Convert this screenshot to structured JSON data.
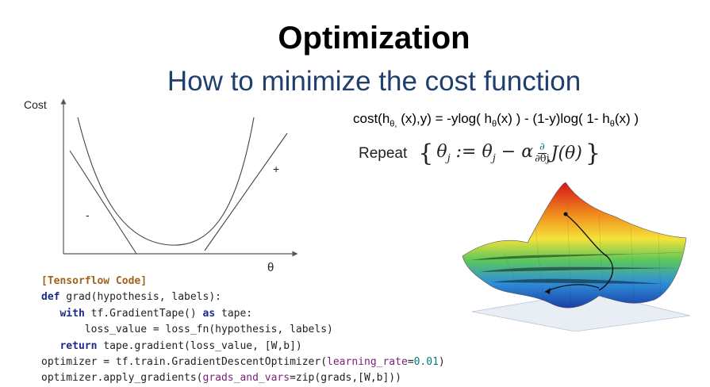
{
  "slide": {
    "title": "Optimization",
    "subtitle": "How to minimize the cost function"
  },
  "graph": {
    "y_label": "Cost",
    "x_label": "θ",
    "minus_mark": "-",
    "plus_mark": "+"
  },
  "formula": {
    "cost_prefix": "cost(h",
    "sub1": "θ,",
    "part2": " (x),y) = -ylog( h",
    "sub2": "θ",
    "part3": "(x) ) - (1-y)log( 1- h",
    "sub3": "θ",
    "part4": "(x) )"
  },
  "update_rule": {
    "word": "Repeat",
    "open_brace": "{",
    "theta": "θ",
    "j": "j",
    "assign": " := ",
    "minus": " − α",
    "d_num": "∂",
    "d_den": "∂θj",
    "J": "J(θ)",
    "close_brace": "}"
  },
  "code": {
    "l1": "[Tensorflow Code]",
    "l2_kw": "def",
    "l2_rest": " grad(hypothesis, labels):",
    "l3_indent": "   ",
    "l3_kw": "with",
    "l3_mid": " tf.GradientTape() ",
    "l3_kw2": "as",
    "l3_rest": " tape:",
    "l4": "       loss_value = loss_fn(hypothesis, labels)",
    "l5_indent": "   ",
    "l5_kw": "return",
    "l5_rest": " tape.gradient(loss_value, [W,b])",
    "l6_pre": "optimizer = tf.train.GradientDescentOptimizer(",
    "l6_arg": "learning_rate",
    "l6_eq": "=",
    "l6_num": "0.01",
    "l6_post": ")",
    "l7_pre": "optimizer.apply_gradients(",
    "l7_arg": "grads_and_vars",
    "l7_post": "=zip(grads,[W,b]))"
  },
  "colors": {
    "subtitle": "#1f3f6e",
    "keyword": "#1e2a8a",
    "comment": "#a0631a",
    "argument": "#7a1e7a",
    "number": "#0a7a7a"
  }
}
